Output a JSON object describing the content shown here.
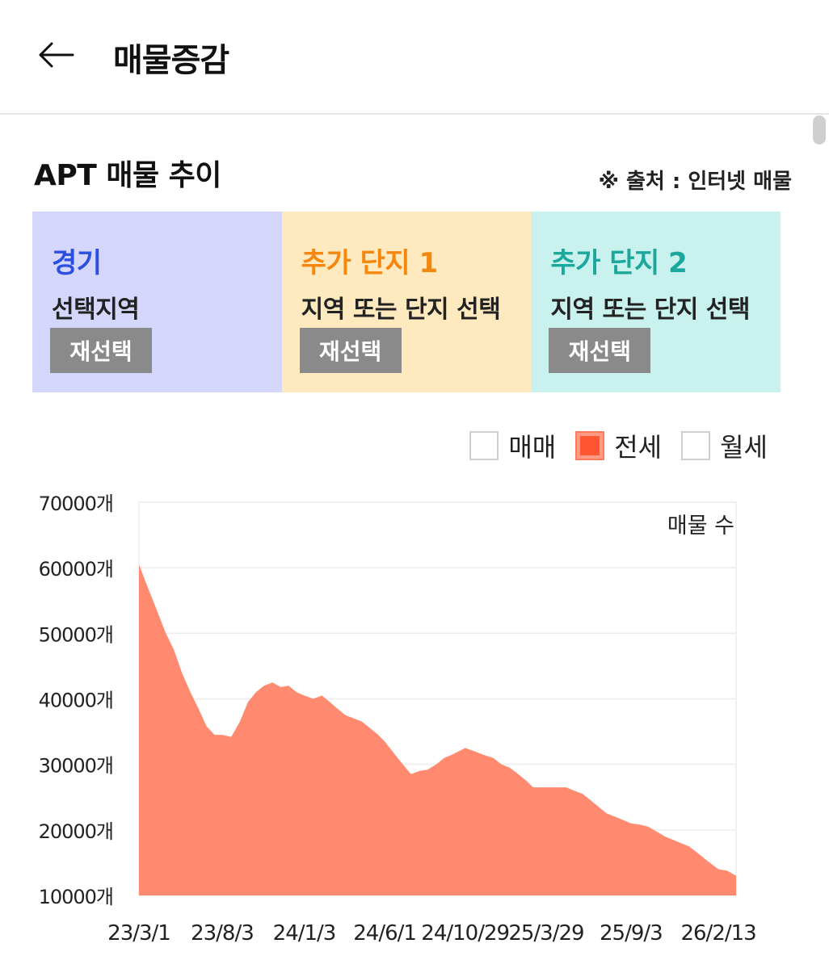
{
  "header": {
    "back_icon": "arrow-left-icon",
    "title": "매물증감"
  },
  "section": {
    "title": "APT 매물 추이",
    "source": "※ 출처 : 인터넷 매물"
  },
  "panels": [
    {
      "title": "경기",
      "subtitle": "선택지역",
      "button": "재선택",
      "color": "#2b4fe0",
      "bg": "#d5d6fc"
    },
    {
      "title": "추가 단지 1",
      "subtitle": "지역 또는 단지 선택",
      "button": "재선택",
      "color": "#f5870f",
      "bg": "#ffeac0"
    },
    {
      "title": "추가 단지 2",
      "subtitle": "지역 또는 단지 선택",
      "button": "재선택",
      "color": "#1aa79c",
      "bg": "#c9f1ed"
    }
  ],
  "legend": [
    {
      "label": "매매",
      "checked": false
    },
    {
      "label": "전세",
      "checked": true
    },
    {
      "label": "월세",
      "checked": false
    }
  ],
  "chart_data": {
    "type": "area",
    "title": "",
    "series_label": "매물 수",
    "color": "#ff8a70",
    "y_tick_labels": [
      "70000개",
      "60000개",
      "50000개",
      "40000개",
      "30000개",
      "20000개",
      "10000개"
    ],
    "y_ticks": [
      70000,
      60000,
      50000,
      40000,
      30000,
      20000,
      10000
    ],
    "ylim": [
      10000,
      70000
    ],
    "x_tick_labels": [
      "23/3/1",
      "23/8/3",
      "24/1/3",
      "24/6/1",
      "24/10/29",
      "25/3/29",
      "25/9/3",
      "26/2/13"
    ],
    "x_tick_dates": [
      "2023-03-01",
      "2023-08-03",
      "2024-01-03",
      "2024-06-01",
      "2024-10-29",
      "2025-03-29",
      "2025-09-03",
      "2026-02-13"
    ],
    "xlim": [
      "2023-03-01",
      "2026-03-18"
    ],
    "grid": true,
    "series": [
      {
        "name": "전세",
        "points": [
          [
            "2023-03-01",
            60500
          ],
          [
            "2023-03-15",
            57500
          ],
          [
            "2023-04-01",
            54000
          ],
          [
            "2023-04-20",
            50000
          ],
          [
            "2023-05-05",
            47500
          ],
          [
            "2023-05-20",
            44000
          ],
          [
            "2023-06-05",
            41000
          ],
          [
            "2023-06-20",
            38500
          ],
          [
            "2023-07-05",
            35800
          ],
          [
            "2023-07-20",
            34500
          ],
          [
            "2023-08-03",
            34500
          ],
          [
            "2023-08-20",
            34200
          ],
          [
            "2023-09-05",
            36500
          ],
          [
            "2023-09-20",
            39500
          ],
          [
            "2023-10-05",
            41000
          ],
          [
            "2023-10-20",
            42000
          ],
          [
            "2023-11-05",
            42500
          ],
          [
            "2023-11-20",
            41800
          ],
          [
            "2023-12-05",
            42000
          ],
          [
            "2023-12-20",
            41000
          ],
          [
            "2024-01-03",
            40500
          ],
          [
            "2024-01-20",
            40000
          ],
          [
            "2024-02-05",
            40500
          ],
          [
            "2024-02-20",
            39500
          ],
          [
            "2024-03-05",
            38500
          ],
          [
            "2024-03-20",
            37500
          ],
          [
            "2024-04-05",
            37000
          ],
          [
            "2024-04-20",
            36500
          ],
          [
            "2024-05-05",
            35500
          ],
          [
            "2024-05-20",
            34500
          ],
          [
            "2024-06-01",
            33500
          ],
          [
            "2024-06-20",
            31500
          ],
          [
            "2024-07-05",
            30000
          ],
          [
            "2024-07-20",
            28500
          ],
          [
            "2024-08-05",
            29000
          ],
          [
            "2024-08-20",
            29200
          ],
          [
            "2024-09-05",
            30000
          ],
          [
            "2024-09-20",
            31000
          ],
          [
            "2024-10-05",
            31500
          ],
          [
            "2024-10-29",
            32500
          ],
          [
            "2024-11-15",
            32000
          ],
          [
            "2024-12-01",
            31500
          ],
          [
            "2024-12-20",
            31000
          ],
          [
            "2025-01-05",
            30000
          ],
          [
            "2025-01-20",
            29500
          ],
          [
            "2025-02-05",
            28500
          ],
          [
            "2025-02-20",
            27500
          ],
          [
            "2025-03-05",
            26500
          ],
          [
            "2025-03-29",
            26500
          ],
          [
            "2025-04-20",
            26500
          ],
          [
            "2025-05-05",
            26500
          ],
          [
            "2025-05-20",
            26000
          ],
          [
            "2025-06-05",
            25500
          ],
          [
            "2025-06-20",
            24500
          ],
          [
            "2025-07-05",
            23500
          ],
          [
            "2025-07-20",
            22500
          ],
          [
            "2025-08-05",
            22000
          ],
          [
            "2025-08-20",
            21500
          ],
          [
            "2025-09-03",
            21000
          ],
          [
            "2025-09-20",
            20800
          ],
          [
            "2025-10-05",
            20500
          ],
          [
            "2025-10-20",
            19800
          ],
          [
            "2025-11-05",
            19000
          ],
          [
            "2025-11-20",
            18500
          ],
          [
            "2025-12-05",
            18000
          ],
          [
            "2025-12-20",
            17500
          ],
          [
            "2026-01-05",
            16500
          ],
          [
            "2026-01-20",
            15500
          ],
          [
            "2026-02-05",
            14500
          ],
          [
            "2026-02-13",
            14000
          ],
          [
            "2026-03-01",
            13800
          ],
          [
            "2026-03-18",
            13000
          ]
        ]
      }
    ]
  }
}
